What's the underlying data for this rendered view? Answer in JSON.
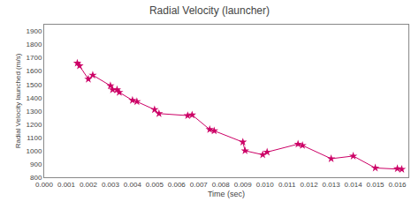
{
  "chart_data": {
    "type": "line",
    "title": "Radial Velocity (launcher)",
    "xlabel": "Time (sec)",
    "ylabel": "Radial Velocity launched (m/s)",
    "x": [
      0.0015,
      0.0016,
      0.002,
      0.0022,
      0.003,
      0.0031,
      0.0033,
      0.0034,
      0.004,
      0.0042,
      0.005,
      0.0052,
      0.0065,
      0.0067,
      0.0075,
      0.0077,
      0.009,
      0.0091,
      0.0099,
      0.0101,
      0.0115,
      0.0117,
      0.013,
      0.014,
      0.015,
      0.016,
      0.0162
    ],
    "series": [
      {
        "color": "#cc0066",
        "marker": "star",
        "values": [
          1660,
          1640,
          1540,
          1570,
          1490,
          1460,
          1460,
          1440,
          1380,
          1370,
          1310,
          1280,
          1265,
          1270,
          1160,
          1150,
          1065,
          1000,
          970,
          990,
          1050,
          1040,
          940,
          960,
          870,
          865,
          860
        ]
      }
    ],
    "xlim": [
      0.0,
      0.0165
    ],
    "ylim": [
      800,
      1950
    ],
    "xticks": [
      {
        "value": 0.0,
        "label": "0.000"
      },
      {
        "value": 0.001,
        "label": "0.001"
      },
      {
        "value": 0.002,
        "label": "0.002"
      },
      {
        "value": 0.003,
        "label": "0.003"
      },
      {
        "value": 0.004,
        "label": "0.004"
      },
      {
        "value": 0.005,
        "label": "0.005"
      },
      {
        "value": 0.006,
        "label": "0.006"
      },
      {
        "value": 0.007,
        "label": "0.007"
      },
      {
        "value": 0.008,
        "label": "0.008"
      },
      {
        "value": 0.009,
        "label": "0.009"
      },
      {
        "value": 0.01,
        "label": "0.010"
      },
      {
        "value": 0.011,
        "label": "0.011"
      },
      {
        "value": 0.012,
        "label": "0.012"
      },
      {
        "value": 0.013,
        "label": "0.013"
      },
      {
        "value": 0.014,
        "label": "0.014"
      },
      {
        "value": 0.015,
        "label": "0.015"
      },
      {
        "value": 0.016,
        "label": "0.016"
      }
    ],
    "yticks": [
      800,
      900,
      1000,
      1100,
      1200,
      1300,
      1400,
      1500,
      1600,
      1700,
      1800,
      1900
    ],
    "grid": false
  }
}
